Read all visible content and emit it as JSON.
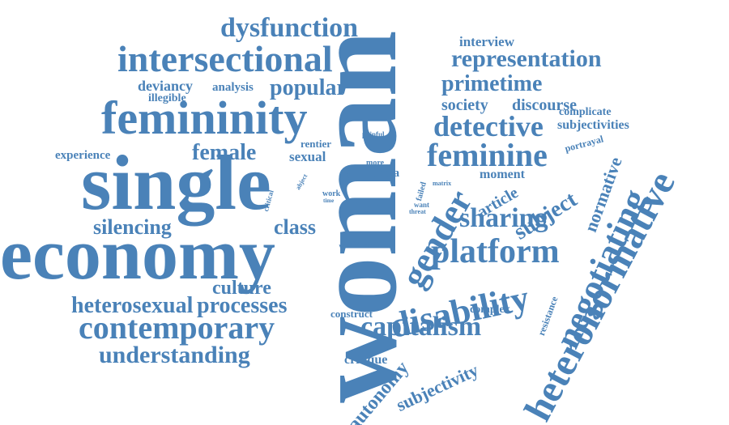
{
  "color": "#4a82b8",
  "words": {
    "woman": "woman",
    "single": "single",
    "economy": "economy",
    "femininity": "femininity",
    "intersectional": "intersectional",
    "dysfunction": "dysfunction",
    "heteronormative": "heteronormative",
    "negotiating": "negotiating",
    "disability": "disability",
    "platform": "platform",
    "gender": "gender",
    "feminine": "feminine",
    "detective": "detective",
    "contemporary": "contemporary",
    "capitalism": "capitalism",
    "sharing": "sharing",
    "understanding": "understanding",
    "heterosexual": "heterosexual",
    "processes": "processes",
    "culture": "culture",
    "representation": "representation",
    "primetime": "primetime",
    "popular": "popular",
    "female": "female",
    "silencing": "silencing",
    "class": "class",
    "subject": "subject",
    "autonomy": "autonomy",
    "subjectivity": "subjectivity",
    "normative": "normative",
    "society": "society",
    "discourse": "discourse",
    "interview": "interview",
    "deviancy": "deviancy",
    "analysis": "analysis",
    "illegible": "illegible",
    "experience": "experience",
    "sexual": "sexual",
    "rentier": "rentier",
    "host": "host",
    "article": "article",
    "moment": "moment",
    "complicate": "complicate",
    "subjectivities": "subjectivities",
    "portrayal": "portrayal",
    "critique": "critique",
    "construct": "construct",
    "complex": "complex",
    "resistance": "resistance",
    "media": "media",
    "more": "more",
    "work": "work",
    "time": "time",
    "painful": "painful",
    "abject": "abject",
    "critical": "critical",
    "allow": "allow",
    "failed": "failed",
    "want": "want",
    "threat": "threat",
    "matrix": "matrix",
    "binary": "binary",
    "space": "space"
  }
}
